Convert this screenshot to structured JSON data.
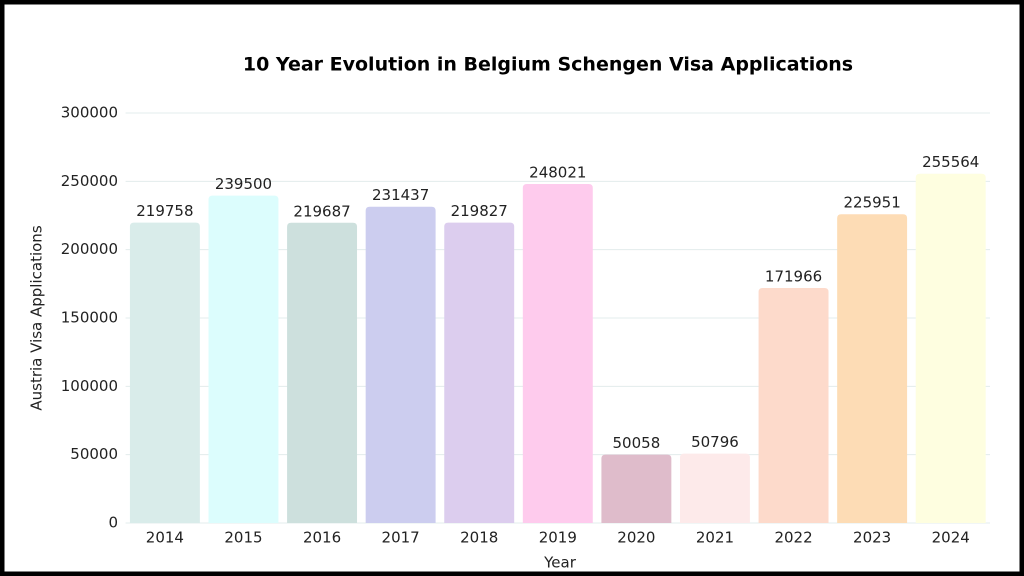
{
  "chart_data": {
    "type": "bar",
    "title": "10 Year Evolution in Belgium Schengen Visa Applications",
    "x_label": "Year",
    "y_label": "Austria Visa Applications",
    "categories": [
      "2014",
      "2015",
      "2016",
      "2017",
      "2018",
      "2019",
      "2020",
      "2021",
      "2022",
      "2023",
      "2024"
    ],
    "values": [
      219758,
      239500,
      219687,
      231437,
      219827,
      248021,
      50058,
      50796,
      171966,
      225951,
      255564
    ],
    "colors": [
      "#d9ecea",
      "#dcfdfd",
      "#cde0dd",
      "#cccdef",
      "#dccdee",
      "#fecbed",
      "#dfbccb",
      "#fdeaea",
      "#fddacb",
      "#fddcb5",
      "#fefee0"
    ],
    "ylim": [
      0,
      300000
    ],
    "yticks": [
      0,
      50000,
      100000,
      150000,
      200000,
      250000,
      300000
    ],
    "grid": true
  }
}
